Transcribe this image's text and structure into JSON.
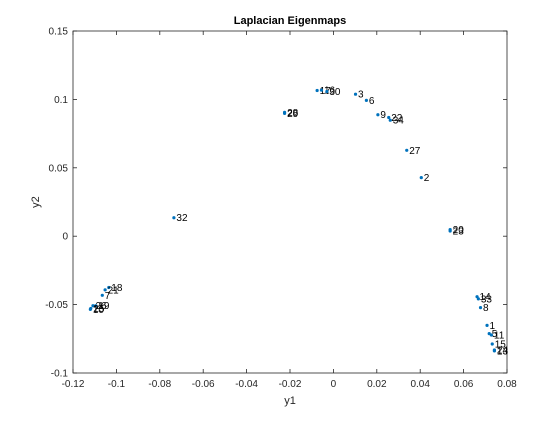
{
  "chart_data": {
    "type": "scatter",
    "title": "Laplacian Eigenmaps",
    "xlabel": "y1",
    "ylabel": "y2",
    "xlim": [
      -0.12,
      0.08
    ],
    "ylim": [
      -0.1,
      0.15
    ],
    "xticks": [
      -0.12,
      -0.1,
      -0.08,
      -0.06,
      -0.04,
      -0.02,
      0,
      0.02,
      0.04,
      0.06,
      0.08
    ],
    "xtick_labels": [
      "-0.12",
      "-0.1",
      "-0.08",
      "-0.06",
      "-0.04",
      "-0.02",
      "0",
      "0.02",
      "0.04",
      "0.06",
      "0.08"
    ],
    "yticks": [
      -0.1,
      -0.05,
      0,
      0.05,
      0.1,
      0.15
    ],
    "ytick_labels": [
      "-0.1",
      "-0.05",
      "0",
      "0.05",
      "0.1",
      "0.15"
    ],
    "grid": false,
    "box": true,
    "marker_color": "#0072bd",
    "points": [
      {
        "x": -0.0075,
        "y": 0.1065,
        "label": "17"
      },
      {
        "x": -0.0055,
        "y": 0.1068,
        "label": "16"
      },
      {
        "x": -0.003,
        "y": 0.1058,
        "label": "30"
      },
      {
        "x": 0.0102,
        "y": 0.1038,
        "label": "3"
      },
      {
        "x": 0.0152,
        "y": 0.0993,
        "label": "6"
      },
      {
        "x": 0.0205,
        "y": 0.0888,
        "label": "9"
      },
      {
        "x": 0.0255,
        "y": 0.0868,
        "label": "22"
      },
      {
        "x": 0.0262,
        "y": 0.0848,
        "label": "34"
      },
      {
        "x": -0.0225,
        "y": 0.0905,
        "label": "28"
      },
      {
        "x": -0.0225,
        "y": 0.0898,
        "label": "29"
      },
      {
        "x": 0.0338,
        "y": 0.0628,
        "label": "27"
      },
      {
        "x": 0.0405,
        "y": 0.0428,
        "label": "2"
      },
      {
        "x": -0.0735,
        "y": 0.0135,
        "label": "32"
      },
      {
        "x": 0.0538,
        "y": 0.0048,
        "label": "20"
      },
      {
        "x": 0.0538,
        "y": 0.0038,
        "label": "23"
      },
      {
        "x": -0.1035,
        "y": -0.0375,
        "label": "18"
      },
      {
        "x": -0.1052,
        "y": -0.0392,
        "label": "21"
      },
      {
        "x": -0.1065,
        "y": -0.0432,
        "label": "7"
      },
      {
        "x": -0.1108,
        "y": -0.0508,
        "label": "26"
      },
      {
        "x": -0.1095,
        "y": -0.0508,
        "label": "19"
      },
      {
        "x": -0.1118,
        "y": -0.0528,
        "label": "25"
      },
      {
        "x": -0.112,
        "y": -0.0535,
        "label": "10"
      },
      {
        "x": 0.0662,
        "y": -0.0442,
        "label": "14"
      },
      {
        "x": 0.0668,
        "y": -0.0458,
        "label": "33"
      },
      {
        "x": 0.0678,
        "y": -0.0522,
        "label": "8"
      },
      {
        "x": 0.0708,
        "y": -0.0652,
        "label": "1"
      },
      {
        "x": 0.0718,
        "y": -0.0712,
        "label": "5"
      },
      {
        "x": 0.0728,
        "y": -0.0722,
        "label": "11"
      },
      {
        "x": 0.0732,
        "y": -0.0788,
        "label": "15"
      },
      {
        "x": 0.0742,
        "y": -0.0832,
        "label": "24"
      },
      {
        "x": 0.0742,
        "y": -0.0838,
        "label": "13"
      }
    ]
  }
}
